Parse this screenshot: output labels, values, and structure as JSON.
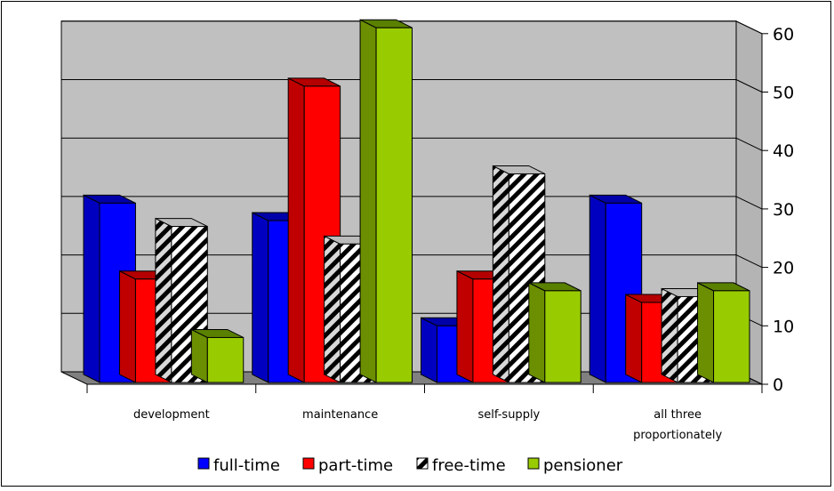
{
  "chart_data": {
    "type": "bar",
    "style": "3d-clustered-column",
    "categories": [
      "development",
      "maintenance",
      "self-supply",
      "all three proportionately"
    ],
    "category_lines": [
      [
        "development"
      ],
      [
        "maintenance"
      ],
      [
        "self-supply"
      ],
      [
        "all three",
        "proportionately"
      ]
    ],
    "series": [
      {
        "name": "full-time",
        "values": [
          31,
          28,
          10,
          31
        ],
        "color": "#0000ff",
        "side_color": "#0000c0",
        "top_color": "#0000a8"
      },
      {
        "name": "part-time",
        "values": [
          18,
          51,
          18,
          14
        ],
        "color": "#ff0000",
        "side_color": "#c00000",
        "top_color": "#b40000"
      },
      {
        "name": "free-time",
        "values": [
          27,
          24,
          36,
          15
        ],
        "color": "#ffffff",
        "pattern": "diagonal-stripes",
        "side_color": "#dddddd",
        "top_color": "#bbbbbb"
      },
      {
        "name": "pensioner",
        "values": [
          8,
          61,
          16,
          16
        ],
        "color": "#99cc00",
        "side_color": "#6b8f00",
        "top_color": "#5a8000"
      }
    ],
    "yticks": [
      0,
      10,
      20,
      30,
      40,
      50,
      60
    ],
    "ylim": [
      0,
      60
    ],
    "grid": true,
    "legend_position": "bottom",
    "title": "",
    "xlabel": "",
    "ylabel": "",
    "wall_color": "#c0c0c0",
    "floor_color": "#808080"
  }
}
